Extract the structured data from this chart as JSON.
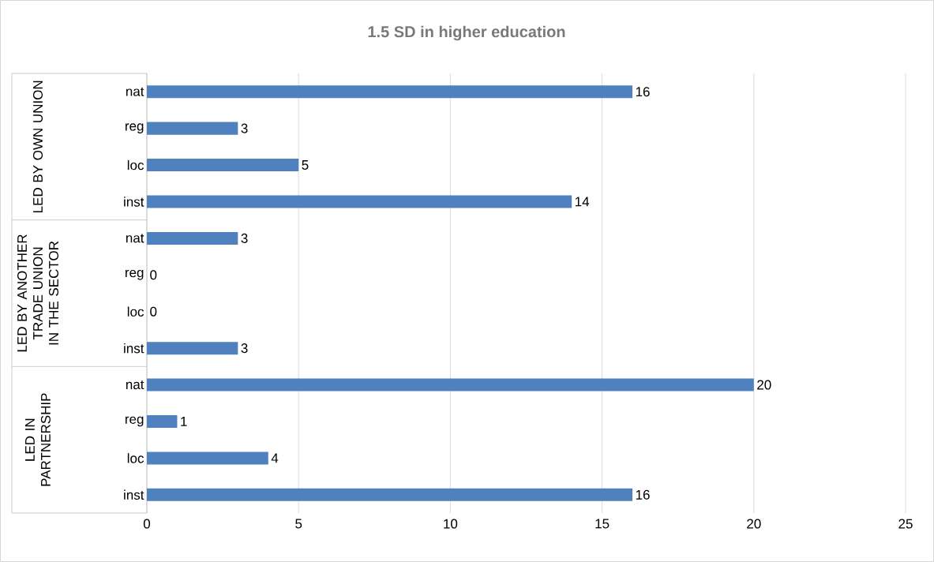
{
  "chart_data": {
    "type": "bar",
    "orientation": "horizontal",
    "title": "1.5 SD in higher education",
    "categories": [
      "nat",
      "reg",
      "loc",
      "inst",
      "nat",
      "reg",
      "loc",
      "inst",
      "nat",
      "reg",
      "loc",
      "inst"
    ],
    "values": [
      16,
      3,
      5,
      14,
      3,
      0,
      0,
      3,
      20,
      1,
      4,
      16
    ],
    "color": "#4e81bd",
    "xlim": [
      0,
      25
    ],
    "xticks": [
      0,
      5,
      10,
      15,
      20,
      25
    ],
    "grid": "x",
    "data_labels": true,
    "annotations": [
      "LED BY OWN UNION",
      "LED BY ANOTHER TRADE UNION IN THE SECTOR",
      "LED IN PARTNERSHIP"
    ]
  }
}
